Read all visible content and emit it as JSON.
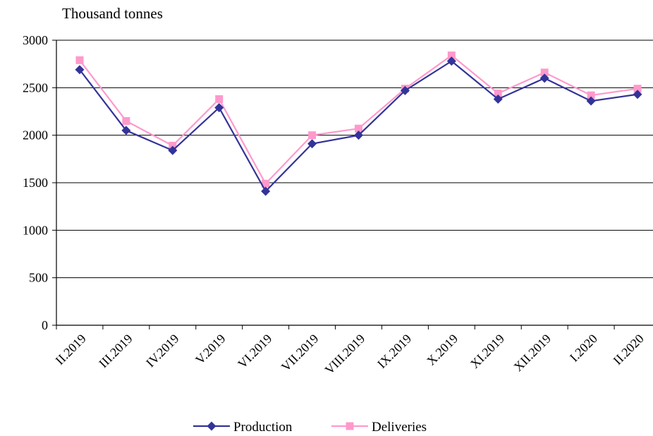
{
  "chart_data": {
    "type": "line",
    "unit_label": "Thousand tonnes",
    "categories": [
      "II.2019",
      "III.2019",
      "IV.2019",
      "V.2019",
      "VI.2019",
      "VII.2019",
      "VIII.2019",
      "IX.2019",
      "X.2019",
      "XI.2019",
      "XII.2019",
      "I.2020",
      "II.2020"
    ],
    "y_ticks": [
      0,
      500,
      1000,
      1500,
      2000,
      2500,
      3000
    ],
    "ylim": [
      0,
      3000
    ],
    "grid": "horizontal",
    "legend_position": "bottom",
    "series": [
      {
        "name": "Production",
        "color": "#333399",
        "marker": "diamond",
        "values": [
          2690,
          2050,
          1840,
          2290,
          1410,
          1910,
          2000,
          2470,
          2780,
          2380,
          2600,
          2360,
          2430
        ]
      },
      {
        "name": "Deliveries",
        "color": "#ff99cc",
        "marker": "square",
        "values": [
          2790,
          2150,
          1890,
          2380,
          1490,
          2000,
          2070,
          2490,
          2840,
          2440,
          2660,
          2420,
          2490
        ]
      }
    ]
  }
}
